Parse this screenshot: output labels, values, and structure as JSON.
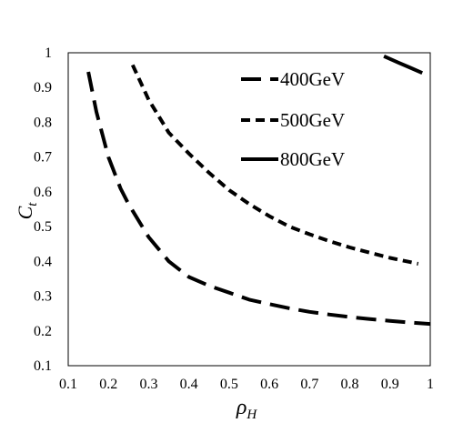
{
  "chart_data": {
    "type": "line",
    "xlabel": "ρ",
    "xlabel_sub": "H",
    "ylabel": "C",
    "ylabel_sub": "t",
    "xlim": [
      0.1,
      1
    ],
    "ylim": [
      0.1,
      1
    ],
    "x_ticks": [
      "0.1",
      "0.2",
      "0.3",
      "0.4",
      "0.5",
      "0.6",
      "0.7",
      "0.8",
      "0.9",
      "1"
    ],
    "y_ticks": [
      "0.1",
      "0.2",
      "0.3",
      "0.4",
      "0.5",
      "0.6",
      "0.7",
      "0.8",
      "0.9",
      "1"
    ],
    "grid": false,
    "legend_position": "top-right",
    "series": [
      {
        "name": "400GeV",
        "style": "dashed-long",
        "x": [
          0.15,
          0.17,
          0.2,
          0.23,
          0.25,
          0.3,
          0.35,
          0.4,
          0.45,
          0.5,
          0.55,
          0.6,
          0.65,
          0.7,
          0.75,
          0.8,
          0.85,
          0.9,
          0.95,
          1.0
        ],
        "y": [
          0.945,
          0.83,
          0.7,
          0.61,
          0.565,
          0.47,
          0.4,
          0.355,
          0.33,
          0.31,
          0.29,
          0.277,
          0.265,
          0.255,
          0.247,
          0.24,
          0.234,
          0.229,
          0.224,
          0.22
        ]
      },
      {
        "name": "500GeV",
        "style": "dashed-short",
        "x": [
          0.26,
          0.3,
          0.35,
          0.4,
          0.45,
          0.5,
          0.55,
          0.6,
          0.65,
          0.7,
          0.75,
          0.8,
          0.85,
          0.9,
          0.95,
          0.97
        ],
        "y": [
          0.965,
          0.865,
          0.77,
          0.71,
          0.655,
          0.605,
          0.565,
          0.53,
          0.5,
          0.478,
          0.458,
          0.44,
          0.425,
          0.41,
          0.398,
          0.393
        ]
      },
      {
        "name": "800GeV",
        "style": "solid",
        "x": [
          0.885,
          0.92,
          0.95,
          0.98
        ],
        "y": [
          0.99,
          0.972,
          0.957,
          0.942
        ]
      }
    ]
  }
}
